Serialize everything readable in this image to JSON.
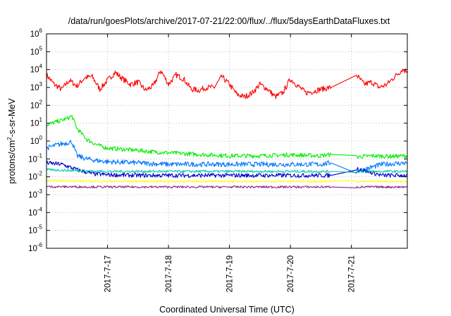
{
  "chart_data": {
    "type": "line",
    "title": "/data/run/goesPlots/archive/2017-07-21/22:00/flux/../flux/5daysEarthDataFluxes.txt",
    "xlabel": "Coordinated Universal Time (UTC)",
    "ylabel": "protons/cm2-s-sr-MeV",
    "ylabel_parts": {
      "pre": "protons/cm",
      "sup": "2",
      "post": "-s-sr-MeV"
    },
    "y_scale": "log",
    "ylim": [
      1e-06,
      1000000.0
    ],
    "y_ticks": [
      {
        "value": 1000000.0,
        "base": "10",
        "exp": "6"
      },
      {
        "value": 100000.0,
        "base": "10",
        "exp": "5"
      },
      {
        "value": 10000.0,
        "base": "10",
        "exp": "4"
      },
      {
        "value": 1000.0,
        "base": "10",
        "exp": "3"
      },
      {
        "value": 100.0,
        "base": "10",
        "exp": "2"
      },
      {
        "value": 10.0,
        "base": "10",
        "exp": "1"
      },
      {
        "value": 1.0,
        "base": "10",
        "exp": "0"
      },
      {
        "value": 0.1,
        "base": "10",
        "exp": "-1"
      },
      {
        "value": 0.01,
        "base": "10",
        "exp": "-2"
      },
      {
        "value": 0.001,
        "base": "10",
        "exp": "-3"
      },
      {
        "value": 0.0001,
        "base": "10",
        "exp": "-4"
      },
      {
        "value": 1e-05,
        "base": "10",
        "exp": "-5"
      },
      {
        "value": 1e-06,
        "base": "10",
        "exp": "-6"
      }
    ],
    "xlim": [
      "2017-07-16",
      "2017-07-21 22:00"
    ],
    "x_ticks": [
      "2017-7-17",
      "2017-7-18",
      "2017-7-19",
      "2017-7-20",
      "2017-7-21"
    ],
    "grid": true,
    "data_gap": [
      "2017-07-20 16:00",
      "2017-07-21 02:00"
    ],
    "series": [
      {
        "color": "#ff0000",
        "x": [
          "2017-07-16 00:00",
          "2017-07-16 03:00",
          "2017-07-16 06:00",
          "2017-07-16 09:00",
          "2017-07-16 12:00",
          "2017-07-16 15:00",
          "2017-07-16 18:00",
          "2017-07-16 21:00",
          "2017-07-17 00:00",
          "2017-07-17 03:00",
          "2017-07-17 06:00",
          "2017-07-17 09:00",
          "2017-07-17 12:00",
          "2017-07-17 15:00",
          "2017-07-17 18:00",
          "2017-07-17 21:00",
          "2017-07-18 00:00",
          "2017-07-18 03:00",
          "2017-07-18 06:00",
          "2017-07-18 09:00",
          "2017-07-18 12:00",
          "2017-07-18 15:00",
          "2017-07-18 18:00",
          "2017-07-18 21:00",
          "2017-07-19 00:00",
          "2017-07-19 03:00",
          "2017-07-19 06:00",
          "2017-07-19 09:00",
          "2017-07-19 12:00",
          "2017-07-19 15:00",
          "2017-07-19 18:00",
          "2017-07-19 21:00",
          "2017-07-20 00:00",
          "2017-07-20 03:00",
          "2017-07-20 06:00",
          "2017-07-20 09:00",
          "2017-07-20 12:00",
          "2017-07-20 16:00",
          "2017-07-21 02:00",
          "2017-07-21 05:00",
          "2017-07-21 08:00",
          "2017-07-21 11:00",
          "2017-07-21 14:00",
          "2017-07-21 17:00",
          "2017-07-21 20:00",
          "2017-07-21 22:00"
        ],
        "values": [
          5000,
          1500,
          800,
          2500,
          1200,
          3500,
          4000,
          800,
          2500,
          7000,
          3000,
          1500,
          2000,
          700,
          1200,
          9000,
          1500,
          5000,
          3000,
          800,
          700,
          1000,
          1000,
          4000,
          1500,
          400,
          300,
          500,
          1500,
          800,
          300,
          500,
          3000,
          1200,
          500,
          600,
          800,
          1000,
          5000,
          1500,
          2000,
          1000,
          1500,
          4000,
          10000,
          8000
        ]
      },
      {
        "color": "#00ee00",
        "x": [
          "2017-07-16 00:00",
          "2017-07-16 04:00",
          "2017-07-16 08:00",
          "2017-07-16 10:00",
          "2017-07-16 12:00",
          "2017-07-16 16:00",
          "2017-07-16 20:00",
          "2017-07-17 00:00",
          "2017-07-17 06:00",
          "2017-07-17 12:00",
          "2017-07-17 18:00",
          "2017-07-18 00:00",
          "2017-07-18 12:00",
          "2017-07-19 00:00",
          "2017-07-19 12:00",
          "2017-07-20 00:00",
          "2017-07-20 12:00",
          "2017-07-20 16:00",
          "2017-07-21 02:00",
          "2017-07-21 08:00",
          "2017-07-21 16:00",
          "2017-07-21 22:00"
        ],
        "values": [
          8,
          12,
          18,
          25,
          5,
          1.2,
          0.6,
          0.4,
          0.35,
          0.3,
          0.25,
          0.22,
          0.18,
          0.15,
          0.15,
          0.17,
          0.15,
          0.18,
          0.13,
          0.15,
          0.14,
          0.15
        ]
      },
      {
        "color": "#0077ff",
        "x": [
          "2017-07-16 00:00",
          "2017-07-16 04:00",
          "2017-07-16 08:00",
          "2017-07-16 10:00",
          "2017-07-16 12:00",
          "2017-07-16 16:00",
          "2017-07-16 20:00",
          "2017-07-17 00:00",
          "2017-07-17 12:00",
          "2017-07-18 00:00",
          "2017-07-18 12:00",
          "2017-07-19 00:00",
          "2017-07-19 12:00",
          "2017-07-20 00:00",
          "2017-07-20 12:00",
          "2017-07-20 16:00",
          "2017-07-21 02:00",
          "2017-07-21 12:00",
          "2017-07-21 22:00"
        ],
        "values": [
          0.4,
          0.6,
          0.8,
          0.9,
          0.15,
          0.1,
          0.08,
          0.07,
          0.06,
          0.05,
          0.05,
          0.05,
          0.05,
          0.05,
          0.05,
          0.06,
          0.02,
          0.05,
          0.06
        ]
      },
      {
        "color": "#0000cc",
        "x": [
          "2017-07-16 00:00",
          "2017-07-16 06:00",
          "2017-07-16 12:00",
          "2017-07-16 18:00",
          "2017-07-17 00:00",
          "2017-07-17 12:00",
          "2017-07-18 00:00",
          "2017-07-19 00:00",
          "2017-07-20 00:00",
          "2017-07-20 16:00",
          "2017-07-21 02:00",
          "2017-07-21 12:00",
          "2017-07-21 22:00"
        ],
        "values": [
          0.06,
          0.05,
          0.025,
          0.015,
          0.013,
          0.012,
          0.012,
          0.012,
          0.012,
          0.012,
          0.03,
          0.012,
          0.012
        ]
      },
      {
        "color": "#00ccaa",
        "x": [
          "2017-07-16 00:00",
          "2017-07-16 12:00",
          "2017-07-17 00:00",
          "2017-07-18 00:00",
          "2017-07-19 00:00",
          "2017-07-20 00:00",
          "2017-07-20 16:00",
          "2017-07-21 02:00",
          "2017-07-21 22:00"
        ],
        "values": [
          0.025,
          0.022,
          0.02,
          0.02,
          0.02,
          0.02,
          0.02,
          0.02,
          0.02
        ]
      },
      {
        "color": "#ffff00",
        "x": [
          "2017-07-16 00:00",
          "2017-07-17 00:00",
          "2017-07-18 00:00",
          "2017-07-19 00:00",
          "2017-07-20 00:00",
          "2017-07-20 16:00",
          "2017-07-21 02:00",
          "2017-07-21 22:00"
        ],
        "values": [
          0.006,
          0.0055,
          0.0055,
          0.0055,
          0.0055,
          0.0055,
          0.0055,
          0.0055
        ]
      },
      {
        "color": "#882288",
        "x": [
          "2017-07-16 00:00",
          "2017-07-17 00:00",
          "2017-07-18 00:00",
          "2017-07-19 00:00",
          "2017-07-20 00:00",
          "2017-07-20 16:00",
          "2017-07-21 02:00",
          "2017-07-21 22:00"
        ],
        "values": [
          0.0028,
          0.0027,
          0.0027,
          0.0027,
          0.0027,
          0.0027,
          0.0027,
          0.0027
        ]
      }
    ]
  }
}
